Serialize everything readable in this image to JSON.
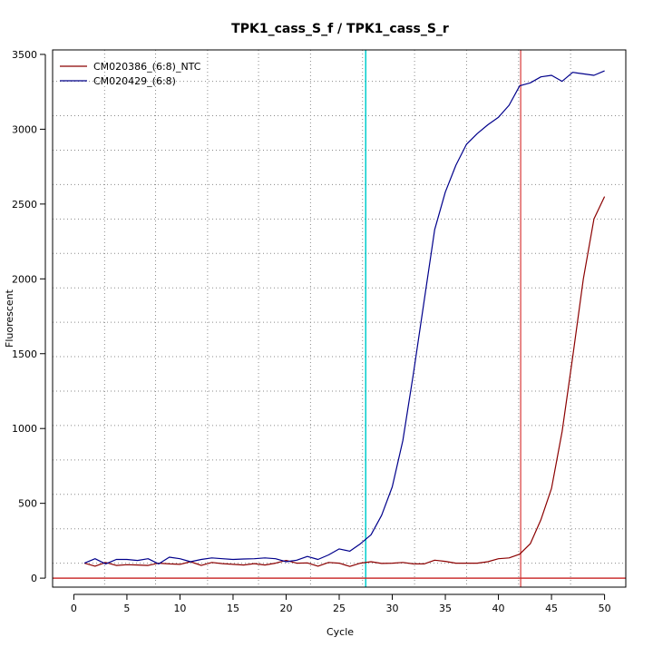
{
  "chart_data": {
    "type": "line",
    "title": "TPK1_cass_S_f / TPK1_cass_S_r",
    "xlabel": "Cycle",
    "ylabel": "Fluorescent",
    "xlim": [
      -2,
      52
    ],
    "ylim": [
      -60,
      3530
    ],
    "x_ticks": [
      0,
      5,
      10,
      15,
      20,
      25,
      30,
      35,
      40,
      45,
      50
    ],
    "y_ticks": [
      0,
      500,
      1000,
      1500,
      2000,
      2500,
      3000,
      3500
    ],
    "x_grid": [
      2.9,
      7.7,
      12.6,
      17.4,
      22.3,
      27.2,
      32.1,
      37.0,
      41.9,
      46.8
    ],
    "y_grid": [
      100,
      330,
      560,
      790,
      1020,
      1250,
      1480,
      1710,
      1940,
      2170,
      2400,
      2630,
      2860,
      3090,
      3320
    ],
    "grid": true,
    "legend_position": "top-left",
    "series": [
      {
        "name": "CM020386_(6:8)_NTC",
        "color": "#8b0000",
        "x": [
          1,
          2,
          3,
          4,
          5,
          6,
          7,
          8,
          9,
          10,
          11,
          12,
          13,
          14,
          15,
          16,
          17,
          18,
          19,
          20,
          21,
          22,
          23,
          24,
          25,
          26,
          27,
          28,
          29,
          30,
          31,
          32,
          33,
          34,
          35,
          36,
          37,
          38,
          39,
          40,
          41,
          42,
          43,
          44,
          45,
          46,
          47,
          48,
          49,
          50
        ],
        "y": [
          100,
          80,
          105,
          85,
          90,
          88,
          85,
          100,
          95,
          92,
          110,
          85,
          105,
          97,
          92,
          88,
          97,
          88,
          100,
          118,
          100,
          102,
          80,
          105,
          100,
          78,
          100,
          110,
          98,
          100,
          105,
          95,
          95,
          120,
          112,
          100,
          100,
          100,
          110,
          130,
          135,
          160,
          230,
          390,
          600,
          980,
          1480,
          2000,
          2400,
          2550
        ]
      },
      {
        "name": "CM020429_(6:8)",
        "color": "#00008b",
        "x": [
          1,
          2,
          3,
          4,
          5,
          6,
          7,
          8,
          9,
          10,
          11,
          12,
          13,
          14,
          15,
          16,
          17,
          18,
          19,
          20,
          21,
          22,
          23,
          24,
          25,
          26,
          27,
          28,
          29,
          30,
          31,
          32,
          33,
          34,
          35,
          36,
          37,
          38,
          39,
          40,
          41,
          42,
          43,
          44,
          45,
          46,
          47,
          48,
          49,
          50
        ],
        "y": [
          100,
          130,
          95,
          125,
          125,
          118,
          130,
          95,
          140,
          130,
          110,
          125,
          135,
          130,
          125,
          128,
          130,
          135,
          130,
          110,
          120,
          145,
          125,
          155,
          195,
          180,
          230,
          290,
          420,
          610,
          920,
          1370,
          1850,
          2330,
          2580,
          2760,
          2900,
          2970,
          3030,
          3080,
          3160,
          3290,
          3310,
          3350,
          3360,
          3320,
          3380,
          3370,
          3360,
          3390
        ]
      }
    ],
    "vlines": [
      {
        "x": 27.5,
        "color": "#00cccc"
      },
      {
        "x": 42.1,
        "color": "#e06060"
      }
    ],
    "hlines": [
      {
        "y": 0,
        "color": "#cc3333"
      }
    ]
  }
}
